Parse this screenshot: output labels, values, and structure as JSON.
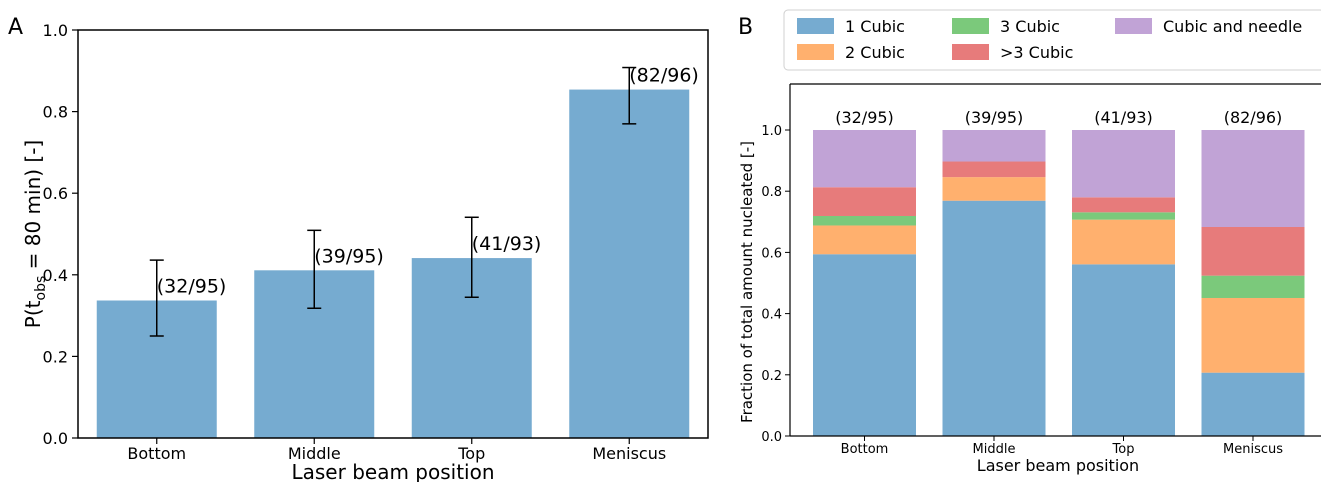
{
  "chart_data": [
    {
      "panel": "A",
      "type": "bar",
      "categories": [
        "Bottom",
        "Middle",
        "Top",
        "Meniscus"
      ],
      "values": [
        0.337,
        0.411,
        0.441,
        0.854
      ],
      "error_low": [
        0.25,
        0.318,
        0.345,
        0.77
      ],
      "error_high": [
        0.436,
        0.509,
        0.541,
        0.908
      ],
      "bar_labels": [
        "(32/95)",
        "(39/95)",
        "(41/93)",
        "(82/96)"
      ],
      "color": "#76abd0",
      "xlabel": "Laser beam position",
      "ylabel": {
        "base": "P(t",
        "subscript": "obs",
        "rest": " = 80 min) [-]"
      },
      "ylim": [
        0,
        1.0
      ],
      "yticks": [
        "0.0",
        "0.2",
        "0.4",
        "0.6",
        "0.8",
        "1.0"
      ],
      "grid": false
    },
    {
      "panel": "B",
      "type": "bar",
      "stacked": true,
      "categories": [
        "Bottom",
        "Middle",
        "Top",
        "Meniscus"
      ],
      "bar_labels": [
        "(32/95)",
        "(39/95)",
        "(41/93)",
        "(82/96)"
      ],
      "series": [
        {
          "name": "1 Cubic",
          "color": "#76abd0",
          "values": [
            0.594,
            0.769,
            0.561,
            0.207
          ]
        },
        {
          "name": "2 Cubic",
          "color": "#ffb06e",
          "values": [
            0.094,
            0.077,
            0.146,
            0.244
          ]
        },
        {
          "name": "3 Cubic",
          "color": "#7bc97b",
          "values": [
            0.031,
            0.0,
            0.024,
            0.073
          ]
        },
        {
          "name": ">3 Cubic",
          "color": "#e77b7b",
          "values": [
            0.094,
            0.051,
            0.049,
            0.159
          ]
        },
        {
          "name": "Cubic and needle",
          "color": "#c1a3d6",
          "values": [
            0.187,
            0.103,
            0.22,
            0.317
          ]
        }
      ],
      "legend_order": [
        "1 Cubic",
        "2 Cubic",
        "3 Cubic",
        ">3 Cubic",
        "Cubic and needle"
      ],
      "xlabel": "Laser beam position",
      "ylabel": "Fraction of total amount nucleated [-]",
      "ylim": [
        0,
        1.0
      ],
      "yticks": [
        "0.0",
        "0.2",
        "0.4",
        "0.6",
        "0.8",
        "1.0"
      ],
      "legend_position": "top",
      "grid": false
    }
  ]
}
